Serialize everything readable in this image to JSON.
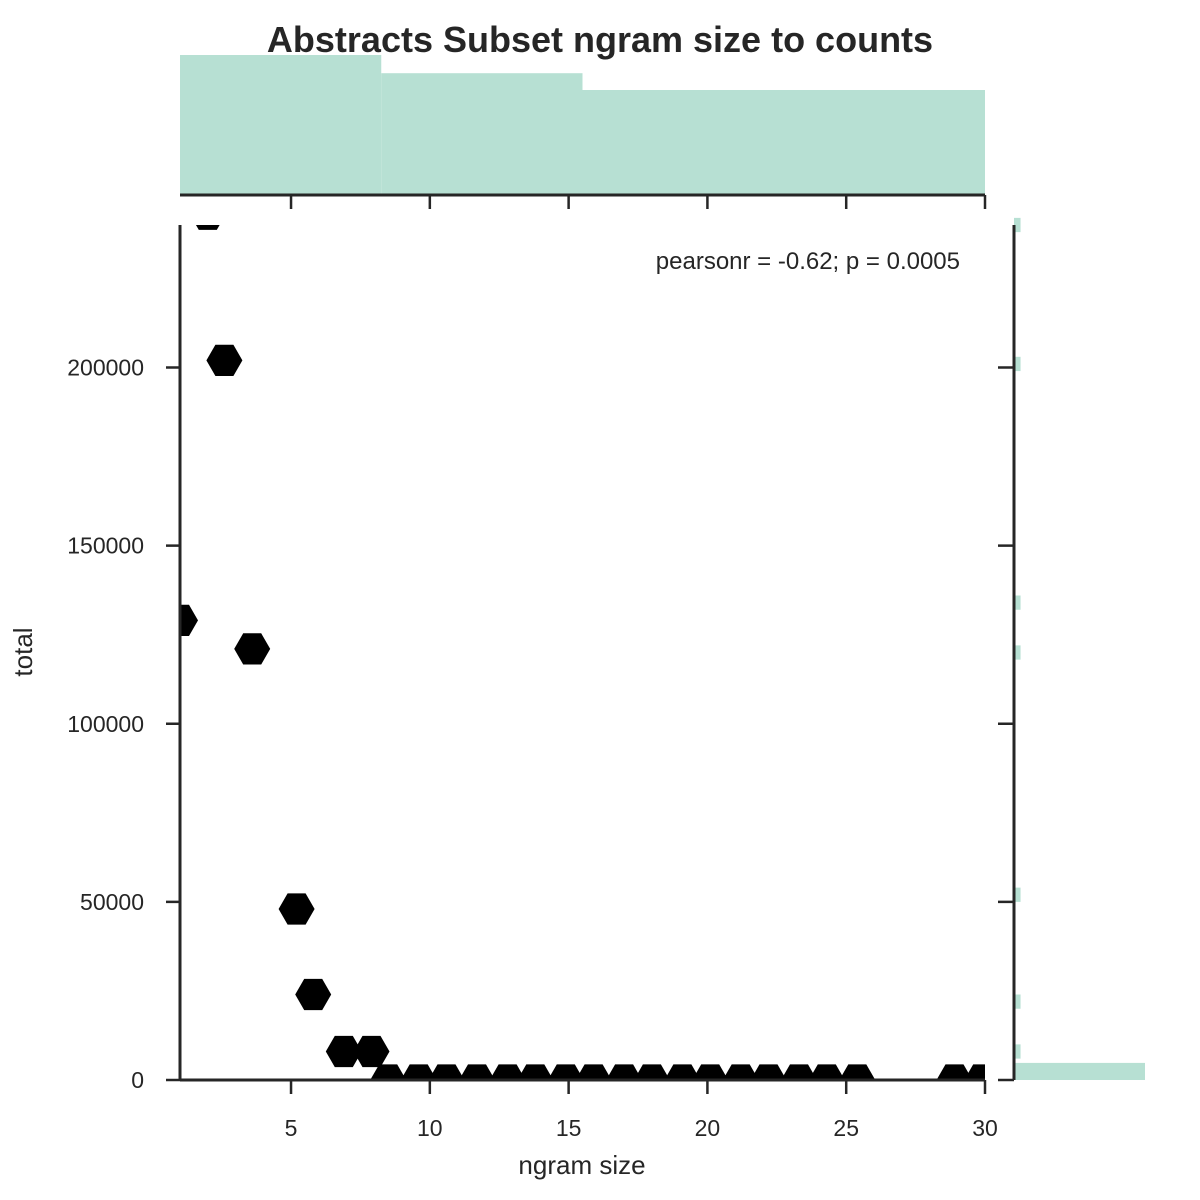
{
  "chart_data": {
    "type": "hexbin",
    "title": "Abstracts Subset ngram size to counts",
    "xlabel": "ngram size",
    "ylabel": "total",
    "annotation": "pearsonr = -0.62; p = 0.0005",
    "xlim": [
      1,
      30
    ],
    "ylim": [
      0,
      240000
    ],
    "x_ticks": [
      "5",
      "10",
      "15",
      "20",
      "25",
      "30"
    ],
    "y_ticks": [
      "0",
      "50000",
      "100000",
      "150000",
      "200000"
    ],
    "hex_color": "#000000",
    "marginal_color": "#b7e0d3",
    "axis_color": "#262626",
    "points": [
      {
        "x": 1.0,
        "y": 129000
      },
      {
        "x": 2.0,
        "y": 243000
      },
      {
        "x": 2.6,
        "y": 202000
      },
      {
        "x": 3.6,
        "y": 121000
      },
      {
        "x": 5.2,
        "y": 48000
      },
      {
        "x": 5.8,
        "y": 24000
      },
      {
        "x": 6.9,
        "y": 8000
      },
      {
        "x": 7.9,
        "y": 8000
      },
      {
        "x": 8.5,
        "y": 0
      },
      {
        "x": 9.6,
        "y": 0
      },
      {
        "x": 10.6,
        "y": 0
      },
      {
        "x": 11.7,
        "y": 0
      },
      {
        "x": 12.8,
        "y": 0
      },
      {
        "x": 13.8,
        "y": 0
      },
      {
        "x": 14.9,
        "y": 0
      },
      {
        "x": 15.9,
        "y": 0
      },
      {
        "x": 17.0,
        "y": 0
      },
      {
        "x": 18.0,
        "y": 0
      },
      {
        "x": 19.1,
        "y": 0
      },
      {
        "x": 20.1,
        "y": 0
      },
      {
        "x": 21.2,
        "y": 0
      },
      {
        "x": 22.2,
        "y": 0
      },
      {
        "x": 23.3,
        "y": 0
      },
      {
        "x": 24.3,
        "y": 0
      },
      {
        "x": 25.4,
        "y": 0
      },
      {
        "x": 28.9,
        "y": 0
      },
      {
        "x": 29.9,
        "y": 0
      }
    ],
    "x_marginal": [
      {
        "x0": 1,
        "x1": 8.25,
        "height": 1.0
      },
      {
        "x0": 8.25,
        "x1": 15.5,
        "height": 0.87
      },
      {
        "x0": 15.5,
        "x1": 30,
        "height": 0.75
      }
    ],
    "y_marginal": [
      {
        "y0": 0,
        "y1": 4800,
        "length": 1.0
      },
      {
        "y0": 6000,
        "y1": 10000,
        "length": 0.05
      },
      {
        "y0": 20000,
        "y1": 24000,
        "length": 0.05
      },
      {
        "y0": 50000,
        "y1": 54000,
        "length": 0.05
      },
      {
        "y0": 118000,
        "y1": 122000,
        "length": 0.05
      },
      {
        "y0": 132000,
        "y1": 136000,
        "length": 0.05
      },
      {
        "y0": 199000,
        "y1": 203000,
        "length": 0.05
      },
      {
        "y0": 238000,
        "y1": 242000,
        "length": 0.05
      }
    ]
  }
}
